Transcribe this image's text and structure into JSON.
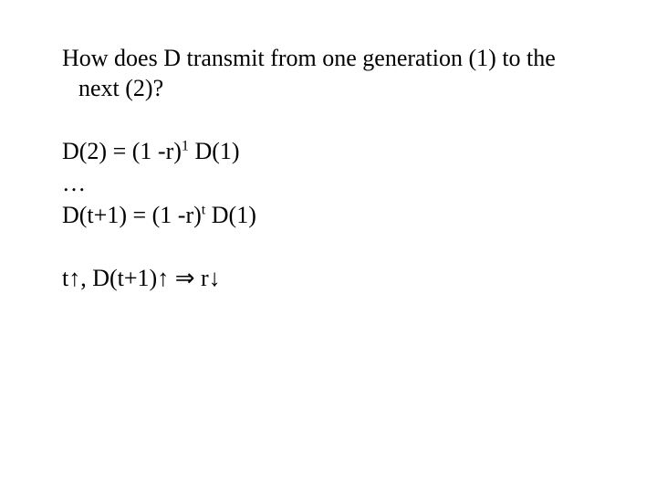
{
  "slide": {
    "background_color": "#ffffff",
    "text_color": "#000000",
    "font_family": "Times New Roman",
    "font_size_pt": 20,
    "heading": "How does D transmit from one generation (1) to the next (2)?",
    "eq1_pre": "D(2) = (1 -r)",
    "eq1_sup": "1",
    "eq1_post": " D(1)",
    "ellipsis": "…",
    "eq2_pre": "D(t+1) = (1 -r)",
    "eq2_sup": "t",
    "eq2_post": " D(1)",
    "final_t": "t",
    "final_up1": "↑",
    "final_comma": ",  D(t+1)",
    "final_up2": "↑",
    "final_implies": " ⇒ r",
    "final_down": "↓"
  }
}
